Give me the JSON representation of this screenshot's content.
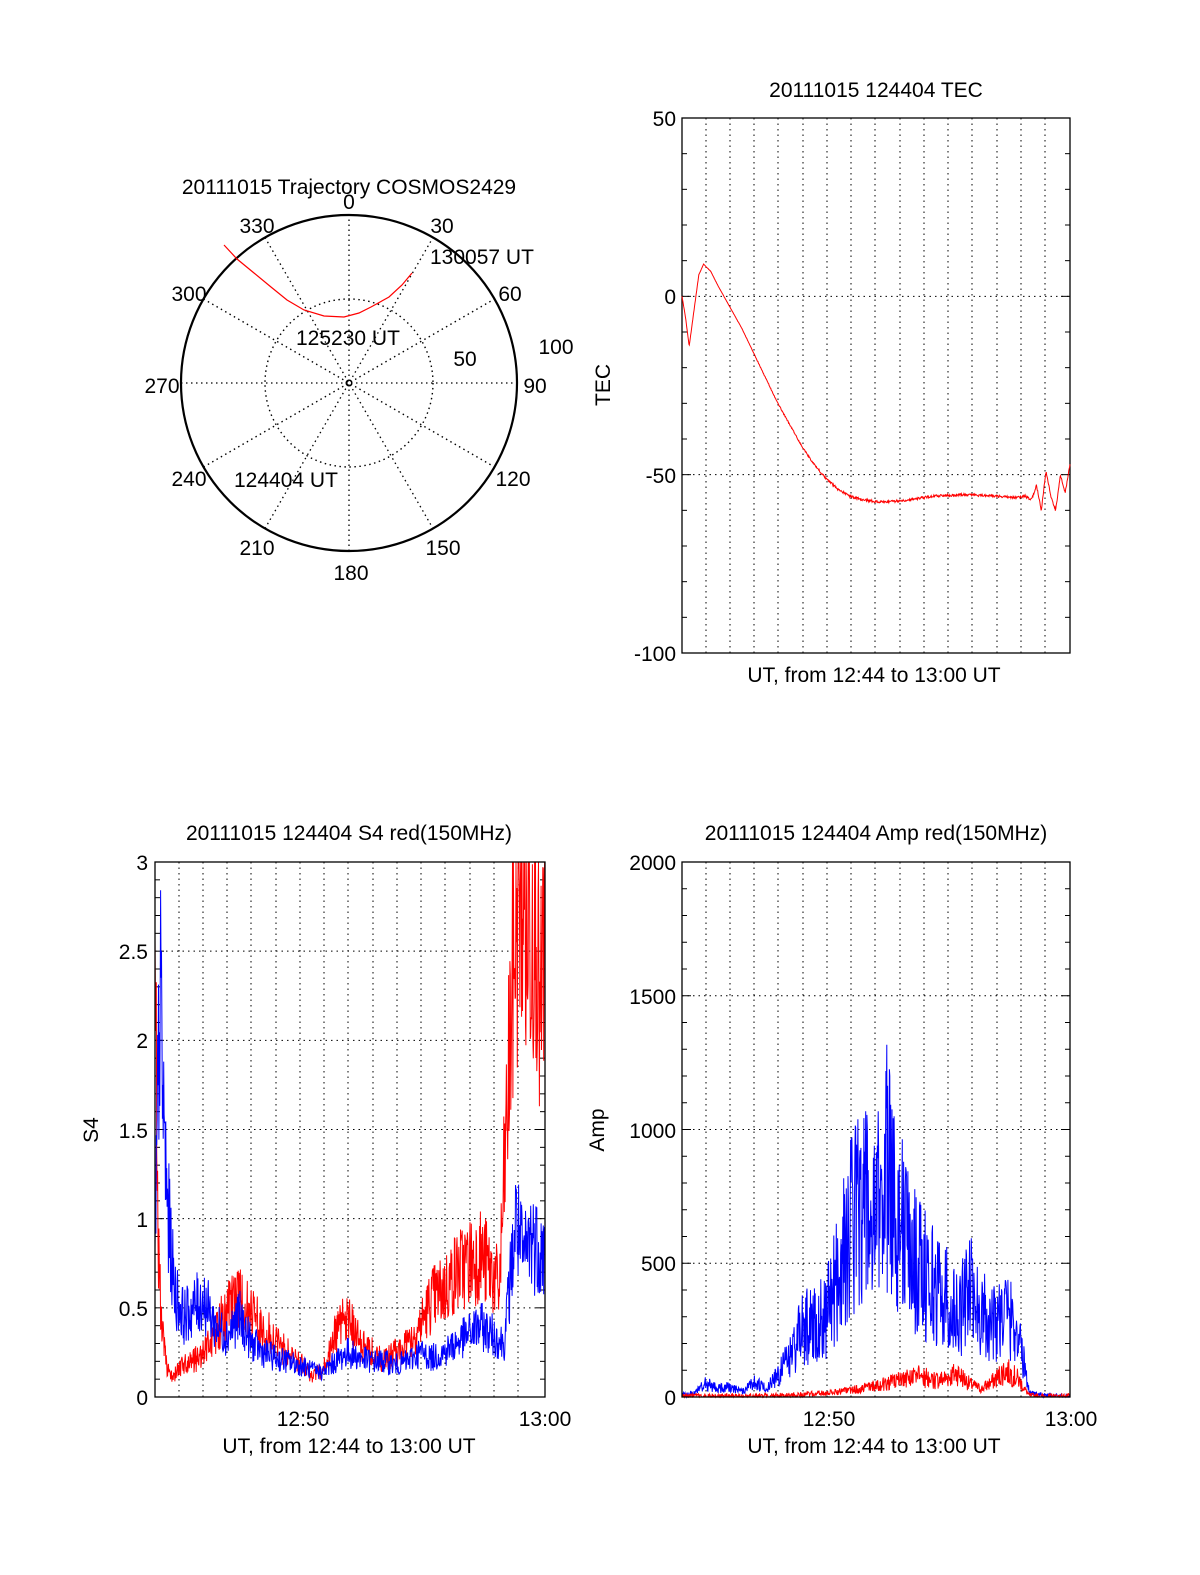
{
  "colors": {
    "red": "#ff0000",
    "blue": "#0000ff",
    "axis": "#000000",
    "grid": "#000000"
  },
  "chart_data": [
    {
      "type": "polar",
      "title": "20111015 Trajectory COSMOS2429",
      "angle_labels": [
        "0",
        "30",
        "60",
        "90",
        "120",
        "150",
        "180",
        "210",
        "240",
        "270",
        "300",
        "330"
      ],
      "radius_labels": [
        "50",
        "100"
      ],
      "grid": true,
      "annotations": [
        "130057 UT",
        "125230 UT",
        "124404 UT"
      ],
      "series": [
        {
          "color": "red",
          "points": [
            [
              63,
              110
            ],
            [
              53,
              98
            ],
            [
              40,
              86
            ],
            [
              22,
              76
            ],
            [
              10,
              70
            ],
            [
              -5,
              66
            ],
            [
              -25,
              67
            ],
            [
              -45,
              73
            ],
            [
              -62,
              83
            ],
            [
              -78,
              96
            ],
            [
              -95,
              110
            ],
            [
              -112,
              124
            ],
            [
              -125,
              138
            ]
          ]
        }
      ]
    },
    {
      "type": "line",
      "title": "20111015 124404 TEC",
      "xlabel": "UT, from 12:44 to 13:00 UT",
      "ylabel": "TEC",
      "ylim": [
        -100,
        50
      ],
      "yticks": [
        "50",
        "0",
        "-50",
        "-100"
      ],
      "xticks": [],
      "xlim": [
        0,
        16.2
      ],
      "grid": true,
      "series": [
        {
          "color": "red",
          "x": [
            0,
            0.15,
            0.3,
            0.5,
            0.7,
            0.9,
            1.2,
            1.5,
            2.0,
            2.5,
            3.0,
            3.5,
            4.0,
            4.5,
            5.0,
            5.5,
            6.0,
            6.5,
            7.0,
            7.5,
            8.0,
            8.5,
            9.0,
            9.5,
            10.0,
            10.5,
            11.0,
            11.5,
            12.0,
            12.5,
            13.0,
            13.5,
            14.0,
            14.3,
            14.6,
            14.8,
            15.0,
            15.2,
            15.4,
            15.6,
            15.8,
            16.0,
            16.2
          ],
          "y": [
            0,
            -6,
            -14,
            -4,
            6,
            9,
            7,
            3,
            -3,
            -9,
            -16,
            -23,
            -30,
            -36,
            -42,
            -47,
            -51,
            -54,
            -56,
            -57,
            -57.5,
            -57.6,
            -57.4,
            -57,
            -56.5,
            -56,
            -55.8,
            -55.7,
            -55.6,
            -55.8,
            -56,
            -56.2,
            -56.4,
            -56,
            -57,
            -53,
            -60,
            -49,
            -56,
            -60,
            -50,
            -55,
            -47
          ]
        }
      ]
    },
    {
      "type": "line",
      "title": "20111015 124404 S4 red(150MHz)",
      "xlabel": "UT, from 12:44 to 13:00 UT",
      "ylabel": "S4",
      "ylim": [
        0,
        3
      ],
      "yticks": [
        "0",
        "0.5",
        "1",
        "1.5",
        "2",
        "2.5",
        "3"
      ],
      "xticks": [
        "12:50",
        "13:00"
      ],
      "xlim": [
        0,
        16.2
      ],
      "grid": true,
      "series": [
        {
          "color": "red",
          "x": [
            0,
            0.1,
            0.2,
            0.35,
            0.5,
            0.8,
            1.2,
            1.6,
            2.0,
            2.5,
            3.0,
            3.5,
            4.0,
            4.5,
            5.0,
            5.5,
            6.0,
            6.5,
            7.0,
            7.5,
            8.0,
            8.5,
            9.0,
            9.5,
            10.0,
            10.5,
            11.0,
            11.5,
            12.0,
            12.5,
            13.0,
            13.5,
            14.0,
            14.3,
            14.6,
            14.9,
            15.2,
            15.5,
            15.8,
            16.0,
            16.2
          ],
          "y": [
            2.9,
            1.2,
            0.6,
            0.3,
            0.15,
            0.12,
            0.18,
            0.2,
            0.25,
            0.35,
            0.5,
            0.55,
            0.45,
            0.4,
            0.3,
            0.25,
            0.2,
            0.12,
            0.15,
            0.35,
            0.45,
            0.3,
            0.25,
            0.2,
            0.25,
            0.3,
            0.4,
            0.55,
            0.6,
            0.7,
            0.75,
            0.8,
            0.7,
            0.6,
            1.5,
            2.5,
            3.0,
            2.6,
            3.0,
            2.0,
            2.7
          ]
        },
        {
          "color": "blue",
          "x": [
            0,
            0.1,
            0.2,
            0.35,
            0.5,
            0.8,
            1.2,
            1.6,
            2.0,
            2.5,
            3.0,
            3.5,
            4.0,
            4.5,
            5.0,
            5.5,
            6.0,
            6.5,
            7.0,
            7.5,
            8.0,
            8.5,
            9.0,
            9.5,
            10.0,
            10.5,
            11.0,
            11.5,
            12.0,
            12.5,
            13.0,
            13.5,
            14.0,
            14.5,
            15.0,
            15.3,
            15.6,
            15.9,
            16.2
          ],
          "y": [
            0.7,
            1.5,
            2.3,
            1.6,
            1.1,
            0.6,
            0.45,
            0.5,
            0.55,
            0.4,
            0.35,
            0.45,
            0.3,
            0.25,
            0.22,
            0.2,
            0.18,
            0.15,
            0.14,
            0.2,
            0.25,
            0.22,
            0.2,
            0.2,
            0.18,
            0.2,
            0.25,
            0.22,
            0.25,
            0.3,
            0.35,
            0.4,
            0.35,
            0.3,
            1.0,
            0.75,
            0.9,
            0.85,
            0.8
          ]
        }
      ]
    },
    {
      "type": "line",
      "title": "20111015 124404 Amp red(150MHz)",
      "xlabel": "UT, from 12:44 to 13:00 UT",
      "ylabel": "Amp",
      "ylim": [
        0,
        2000
      ],
      "yticks": [
        "0",
        "500",
        "1000",
        "1500",
        "2000"
      ],
      "xticks": [
        "12:50",
        "13:00"
      ],
      "xlim": [
        0,
        16.2
      ],
      "grid": true,
      "series": [
        {
          "color": "blue",
          "x": [
            0,
            0.5,
            1.0,
            1.5,
            2.0,
            2.5,
            3.0,
            3.5,
            4.0,
            4.5,
            5.0,
            5.5,
            6.0,
            6.5,
            7.0,
            7.5,
            8.0,
            8.5,
            9.0,
            9.5,
            10.0,
            10.5,
            11.0,
            11.5,
            12.0,
            12.5,
            13.0,
            13.5,
            14.0,
            14.5,
            15.0,
            15.5,
            16.2
          ],
          "y": [
            5,
            15,
            50,
            30,
            40,
            20,
            60,
            30,
            80,
            150,
            250,
            280,
            300,
            450,
            620,
            760,
            600,
            880,
            700,
            550,
            480,
            420,
            380,
            300,
            400,
            320,
            280,
            320,
            250,
            20,
            5,
            3,
            3
          ]
        },
        {
          "color": "red",
          "x": [
            0,
            1,
            2,
            3,
            4,
            5,
            6,
            7,
            8,
            9,
            10,
            10.5,
            11,
            11.5,
            12,
            12.5,
            13,
            13.5,
            14,
            14.5,
            15,
            16.2
          ],
          "y": [
            2,
            2,
            3,
            3,
            5,
            8,
            15,
            25,
            40,
            60,
            80,
            60,
            70,
            90,
            50,
            30,
            60,
            100,
            70,
            5,
            2,
            2
          ]
        }
      ]
    }
  ]
}
